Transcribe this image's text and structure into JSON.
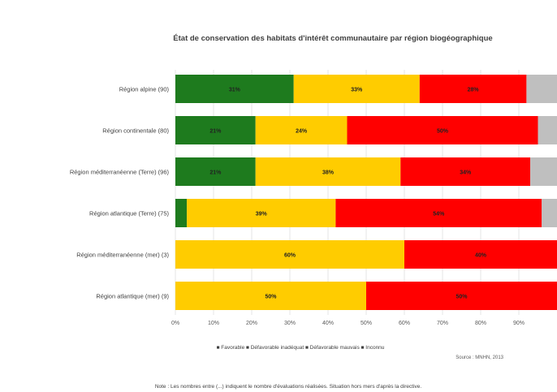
{
  "chart_data": {
    "type": "bar",
    "orientation": "horizontal",
    "stacked": true,
    "title": "État de conservation des habitats d'intérêt communautaire par région biogéographique",
    "categories": [
      "Région alpine (90)",
      "Région continentale (80)",
      "Région méditerranéenne (Terre) (96)",
      "Région atlantique (Terre) (75)",
      "Région méditerranéenne (mer) (3)",
      "Région atlantique (mer) (9)"
    ],
    "series": [
      {
        "name": "Favorable",
        "color": "#1e7b1e",
        "values": [
          31,
          21,
          21,
          3,
          0,
          0
        ],
        "labels": [
          "31%",
          "21%",
          "21%",
          "",
          "",
          ""
        ]
      },
      {
        "name": "Défavorable inadéquat",
        "color": "#ffcc00",
        "values": [
          33,
          24,
          38,
          39,
          60,
          50
        ],
        "labels": [
          "33%",
          "24%",
          "38%",
          "39%",
          "60%",
          "50%"
        ]
      },
      {
        "name": "Défavorable mauvais",
        "color": "#ff0000",
        "values": [
          28,
          50,
          34,
          54,
          40,
          50
        ],
        "labels": [
          "28%",
          "50%",
          "34%",
          "54%",
          "40%",
          "50%"
        ]
      },
      {
        "name": "Inconnu",
        "color": "#bfbfbf",
        "values": [
          8,
          5,
          7,
          4,
          0,
          0
        ],
        "labels": [
          "",
          "",
          "",
          "",
          "",
          ""
        ]
      }
    ],
    "xlim": [
      0,
      100
    ],
    "xticks": [
      "0%",
      "10%",
      "20%",
      "30%",
      "40%",
      "50%",
      "60%",
      "70%",
      "80%",
      "90%"
    ],
    "legend_position": "bottom",
    "legend_text": "■ Favorable ■ Défavorable inadéquat ■ Défavorable mauvais ■ Inconnu",
    "source": "Source : MNHN, 2013",
    "note": "Note : Les nombres entre (...) indiquent le nombre d'évaluations réalisées. Situation hors mers d'après la directive."
  }
}
